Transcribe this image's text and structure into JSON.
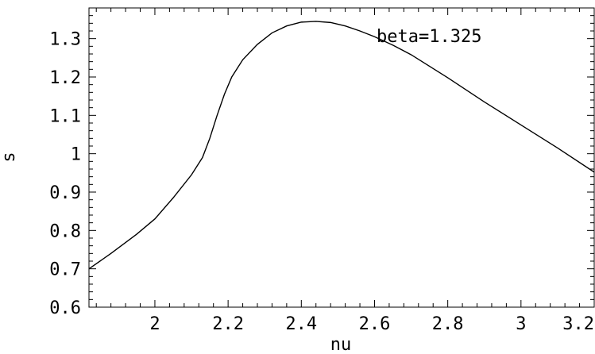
{
  "chart_data": {
    "type": "line",
    "xlabel": "nu",
    "ylabel": "s",
    "annotation": "beta=1.325",
    "xlim": [
      1.82,
      3.2
    ],
    "ylim": [
      0.6,
      1.38
    ],
    "xticks": [
      {
        "value": 2.0,
        "label": "2"
      },
      {
        "value": 2.2,
        "label": "2.2"
      },
      {
        "value": 2.4,
        "label": "2.4"
      },
      {
        "value": 2.6,
        "label": "2.6"
      },
      {
        "value": 2.8,
        "label": "2.8"
      },
      {
        "value": 3.0,
        "label": "3"
      },
      {
        "value": 3.2,
        "label": "3.2"
      }
    ],
    "yticks": [
      {
        "value": 0.6,
        "label": "0.6"
      },
      {
        "value": 0.7,
        "label": "0.7"
      },
      {
        "value": 0.8,
        "label": "0.8"
      },
      {
        "value": 0.9,
        "label": "0.9"
      },
      {
        "value": 1.0,
        "label": "1"
      },
      {
        "value": 1.1,
        "label": "1.1"
      },
      {
        "value": 1.2,
        "label": "1.2"
      },
      {
        "value": 1.3,
        "label": "1.3"
      }
    ],
    "grid": false,
    "series": [
      {
        "x": [
          1.82,
          1.88,
          1.95,
          2.0,
          2.05,
          2.1,
          2.13,
          2.15,
          2.17,
          2.19,
          2.21,
          2.24,
          2.28,
          2.32,
          2.36,
          2.4,
          2.44,
          2.48,
          2.52,
          2.56,
          2.6,
          2.65,
          2.7,
          2.8,
          2.9,
          3.0,
          3.1,
          3.2
        ],
        "y": [
          0.7,
          0.74,
          0.79,
          0.83,
          0.885,
          0.945,
          0.99,
          1.04,
          1.1,
          1.155,
          1.2,
          1.245,
          1.285,
          1.315,
          1.333,
          1.343,
          1.345,
          1.342,
          1.333,
          1.32,
          1.305,
          1.283,
          1.258,
          1.198,
          1.135,
          1.075,
          1.015,
          0.952
        ]
      }
    ]
  }
}
